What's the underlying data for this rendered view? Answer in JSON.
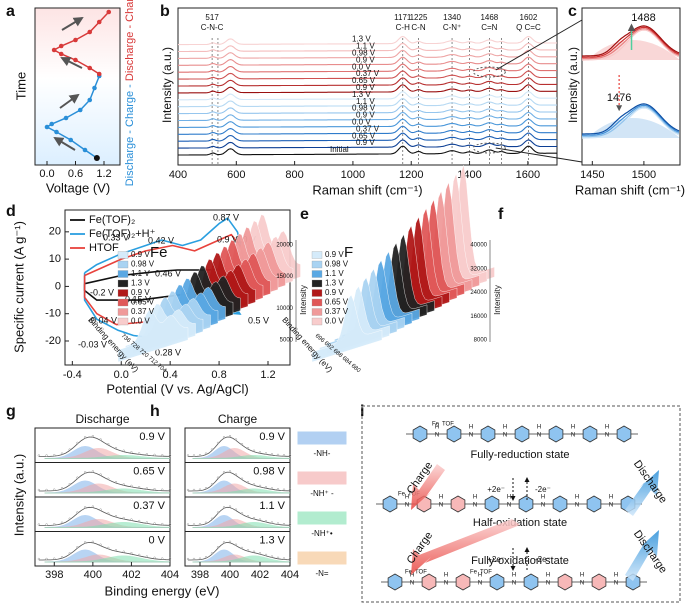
{
  "panel_letters": [
    "a",
    "b",
    "c",
    "d",
    "e",
    "f",
    "g",
    "h",
    "i"
  ],
  "a": {
    "ylabel": "Time",
    "xlabel": "Voltage (V)",
    "xticks": [
      "0.0",
      "0.6",
      "1.2"
    ],
    "side_blue": "Discharge - Charge - ",
    "side_red": "Discharge - Charge"
  },
  "b": {
    "xlabel": "Raman shift (cm⁻¹)",
    "ylabel": "Intensity (a.u.)",
    "xticks": [
      "400",
      "600",
      "800",
      "1000",
      "1200",
      "1400",
      "1600"
    ],
    "peaks": [
      {
        "pos": "517",
        "name": "C-N-C"
      },
      {
        "pos": "1171",
        "name": "C-H"
      },
      {
        "pos": "1225",
        "name": "C-N"
      },
      {
        "pos": "1340",
        "name": "C-N⁺"
      },
      {
        "pos": "1468",
        "name": "C=N"
      },
      {
        "pos": "1602",
        "name": "Q C=C"
      }
    ],
    "spectra": [
      {
        "label": "1.3 V",
        "color": "#f8d3d3"
      },
      {
        "label": "1.1 V",
        "color": "#f4bdbd"
      },
      {
        "label": "0.98 V",
        "color": "#eea6a6"
      },
      {
        "label": "0.9 V",
        "color": "#e88d8d"
      },
      {
        "label": "0.0 V",
        "color": "#df7272"
      },
      {
        "label": "0.37 V",
        "color": "#cf5252"
      },
      {
        "label": "0.65 V",
        "color": "#b83030"
      },
      {
        "label": "0.9 V",
        "color": "#9a1010"
      },
      {
        "label": "1.3 V",
        "color": "#d2e8f8"
      },
      {
        "label": "1.1 V",
        "color": "#b6d9f3"
      },
      {
        "label": "0.98 V",
        "color": "#96c6ee"
      },
      {
        "label": "0.9 V",
        "color": "#70b0e6"
      },
      {
        "label": "0.0 V",
        "color": "#4a97da"
      },
      {
        "label": "0.37 V",
        "color": "#2f7ccb"
      },
      {
        "label": "0.65 V",
        "color": "#1c5fb5"
      },
      {
        "label": "0.9 V",
        "color": "#0d3f94"
      },
      {
        "label": "Initial",
        "color": "#111111"
      }
    ]
  },
  "c": {
    "ylabel": "Intensity (a.u.)",
    "xlabel": "Raman shift (cm⁻¹)",
    "xticks": [
      "1450",
      "1500"
    ],
    "upper_peak": "1488",
    "lower_peak": "1476"
  },
  "chart_data": {
    "type": "line",
    "xlabel": "Potential (V vs. Ag/AgCl)",
    "ylabel": "Specific current (A g⁻¹)",
    "xlim": [
      -0.46,
      1.38
    ],
    "ylim": [
      -28.8,
      28
    ],
    "xticks": [
      -0.4,
      {
        "value": 0,
        "label": "0.0"
      },
      0.4,
      0.8,
      1.2
    ],
    "yticks": [
      -20,
      -10,
      0,
      10,
      20
    ],
    "series": [
      {
        "name": "Fe(TOF)₂",
        "color": "#111111",
        "x": [
          -0.3,
          0,
          0.3,
          0.46,
          0.7,
          1.0,
          1.2,
          1.2,
          0.9,
          0.5,
          0.15,
          -0.2,
          -0.3,
          -0.3
        ],
        "values": [
          1,
          4,
          5.5,
          6,
          6,
          7,
          7.5,
          4,
          0,
          -3,
          -5,
          -5,
          -1.5,
          1
        ]
      },
      {
        "name": "Fe(TOF)₂+H⁺",
        "color": "#2a9fe0",
        "x": [
          -0.3,
          -0.2,
          0,
          0.2,
          0.33,
          0.5,
          0.65,
          0.8,
          0.87,
          0.95,
          1.0,
          0.95,
          0.8,
          0.6,
          0.45,
          0.28,
          0.1,
          -0.03,
          -0.2,
          -0.3,
          -0.3
        ],
        "values": [
          5,
          8,
          12,
          15,
          17,
          15,
          17,
          23,
          25,
          20,
          12,
          5,
          -2,
          -8,
          -14,
          -19,
          -18,
          -16,
          -12,
          -5,
          5
        ]
      },
      {
        "name": "HTOF",
        "color": "#e8423c",
        "x": [
          -0.3,
          0,
          0.2,
          0.42,
          0.6,
          0.8,
          0.9,
          0.97,
          1.0,
          0.9,
          0.7,
          0.44,
          0.2,
          -0.04,
          -0.2,
          -0.3,
          -0.3
        ],
        "values": [
          4,
          10,
          13,
          15,
          13,
          17,
          19,
          15,
          10,
          0,
          -5,
          -10,
          -13,
          -14,
          -10,
          -4,
          4
        ]
      }
    ],
    "annotations": [
      {
        "text": "0.87 V",
        "color": "#2a9fe0"
      },
      {
        "text": "0.33 V",
        "color": "#2a9fe0"
      },
      {
        "text": "0.42 V",
        "color": "#e8423c"
      },
      {
        "text": "0.9 V",
        "color": "#e8423c"
      },
      {
        "text": "1.0 V",
        "color": "#111111"
      },
      {
        "text": "0.46 V",
        "color": "#111111"
      },
      {
        "text": "-0.2 V",
        "color": "#111111"
      },
      {
        "text": "0.15 V",
        "color": "#111111"
      },
      {
        "text": "-0.04 V",
        "color": "#e8423c"
      },
      {
        "text": "0.44 V",
        "color": "#e8423c"
      },
      {
        "text": "-0.03 V",
        "color": "#2a9fe0"
      },
      {
        "text": "0.28 V",
        "color": "#2a9fe0"
      },
      {
        "text": "0.5 V",
        "color": "#2a9fe0"
      }
    ]
  },
  "e": {
    "element": "Fe",
    "zlabel": "Intensity",
    "xlabel": "Binding energy (eV)",
    "zticks": [
      "5000",
      "10000",
      "15000",
      "20000"
    ],
    "xticks": [
      "736",
      "728",
      "720",
      "712",
      "704"
    ],
    "legend": [
      {
        "label": "0.9 V",
        "color": "#d5ebfa"
      },
      {
        "label": "0.98 V",
        "color": "#a9d3f2"
      },
      {
        "label": "1.1 V",
        "color": "#5aa8e3"
      },
      {
        "label": "1.3 V",
        "color": "#222222"
      },
      {
        "label": "0.9 V",
        "color": "#b01818"
      },
      {
        "label": "0.65 V",
        "color": "#e05858"
      },
      {
        "label": "0.37 V",
        "color": "#f09a9a"
      },
      {
        "label": "0.0 V",
        "color": "#f8cccc"
      }
    ]
  },
  "f": {
    "element": "F",
    "zlabel": "Intensity",
    "xlabel": "Binding energy (eV)",
    "zticks": [
      "8000",
      "16000",
      "24000",
      "32000",
      "40000"
    ],
    "xticks": [
      "696",
      "692",
      "688",
      "684",
      "680"
    ],
    "legend": [
      {
        "label": "0.9 V",
        "color": "#d5ebfa"
      },
      {
        "label": "0.98 V",
        "color": "#a9d3f2"
      },
      {
        "label": "1.1 V",
        "color": "#5aa8e3"
      },
      {
        "label": "1.3 V",
        "color": "#222222"
      },
      {
        "label": "0.9 V",
        "color": "#b01818"
      },
      {
        "label": "0.65 V",
        "color": "#e05858"
      },
      {
        "label": "0.37 V",
        "color": "#f09a9a"
      },
      {
        "label": "0.0 V",
        "color": "#f8cccc"
      }
    ]
  },
  "g": {
    "title": "Discharge",
    "labels": [
      "0.9 V",
      "0.65 V",
      "0.37 V",
      "0 V"
    ]
  },
  "h": {
    "title": "Charge",
    "labels": [
      "0.9 V",
      "0.98 V",
      "1.1 V",
      "1.3 V"
    ]
  },
  "gh": {
    "ylabel": "Intensity (a.u.)",
    "xlabel": "Binding energy (eV)",
    "xticks": [
      "398",
      "400",
      "402",
      "404"
    ]
  },
  "xps_legend": [
    {
      "label": "-NH-",
      "color": "#7fb2ea"
    },
    {
      "label": "-NH⁺ -",
      "color": "#f2a8a8"
    },
    {
      "label": "-NH⁺•",
      "color": "#7fe0b0"
    },
    {
      "label": "-N=",
      "color": "#f5c08a"
    }
  ],
  "i": {
    "states": [
      "Fully-reduction state",
      "Half-oxidation state",
      "Fully-oxidation state"
    ],
    "charge": "Charge",
    "discharge": "Discharge",
    "plus": "+2e⁻",
    "minus": "-2e⁻",
    "atoms": {
      "fe": "Fe",
      "tof": "TOF",
      "h": "H",
      "n": "N"
    }
  }
}
